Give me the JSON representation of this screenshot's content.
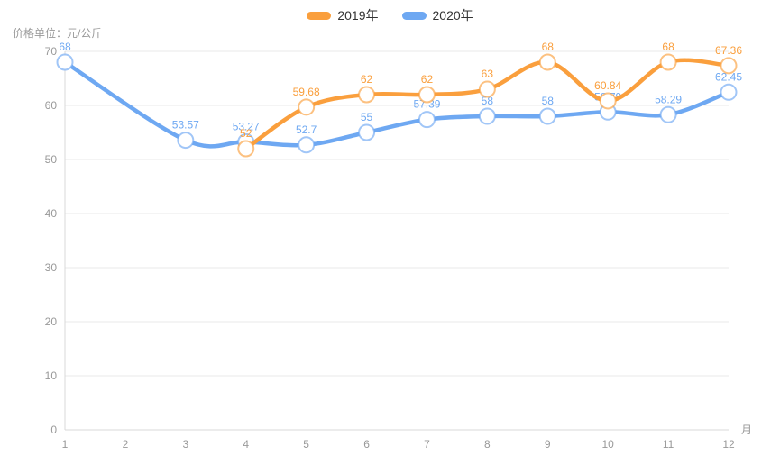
{
  "chart_data": {
    "type": "line",
    "title": "",
    "y_axis_name": "价格单位：元/公斤",
    "x_axis_name": "月",
    "categories": [
      "1",
      "2",
      "3",
      "4",
      "5",
      "6",
      "7",
      "8",
      "9",
      "10",
      "11",
      "12"
    ],
    "y_ticks": [
      0,
      10,
      20,
      30,
      40,
      50,
      60,
      70
    ],
    "ylim": [
      0,
      70
    ],
    "grid": "horizontal-gridlines-only",
    "legend_position": "top-center",
    "smooth": true,
    "point_style": "hollow-circle-white-fill",
    "series": [
      {
        "name": "2019年",
        "color": "#FA9F3D",
        "values": [
          null,
          null,
          null,
          52,
          59.68,
          62,
          62,
          63,
          68,
          60.84,
          68,
          67.36
        ]
      },
      {
        "name": "2020年",
        "color": "#6EA8F2",
        "values": [
          68,
          null,
          53.57,
          53.27,
          52.7,
          55,
          57.39,
          58,
          58,
          58.79,
          58.29,
          62.45
        ]
      }
    ]
  },
  "colors": {
    "axis_text": "#999999",
    "legend_text": "#333333",
    "grid_line": "#E9E9E9",
    "axis_line": "#D8D8D8",
    "background": "#FFFFFF"
  }
}
